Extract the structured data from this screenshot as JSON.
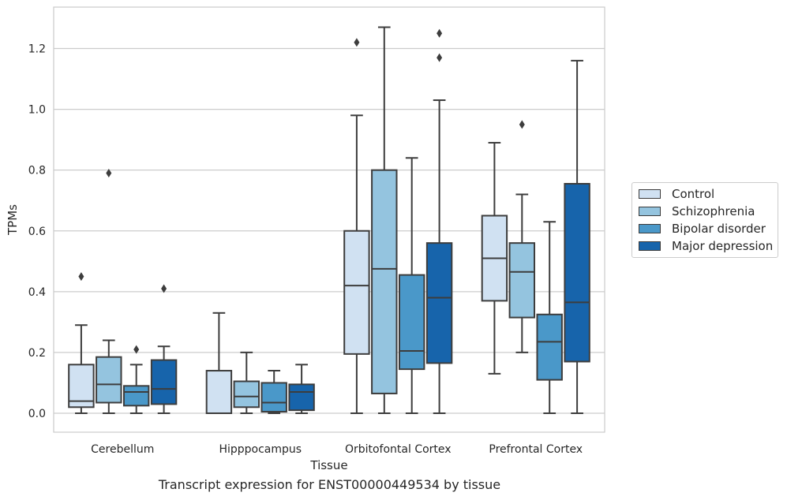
{
  "chart_data": {
    "type": "box",
    "title": "",
    "caption": "Transcript expression for ENST00000449534 by tissue",
    "xlabel": "Tissue",
    "ylabel": "TPMs",
    "ylim": [
      -0.06,
      1.34
    ],
    "yticks": [
      "0.0",
      "0.2",
      "0.4",
      "0.6",
      "0.8",
      "1.0",
      "1.2"
    ],
    "grid": true,
    "legend_position": "right",
    "categories": [
      "Cerebellum",
      "Hipppocampus",
      "Orbitofontal Cortex",
      "Prefrontal Cortex"
    ],
    "series": [
      {
        "name": "Control",
        "color": "#d0e1f2",
        "boxes": [
          {
            "whislo": 0.0,
            "q1": 0.02,
            "med": 0.04,
            "q3": 0.16,
            "whishi": 0.29,
            "fliers": [
              0.45
            ]
          },
          {
            "whislo": 0.0,
            "q1": 0.0,
            "med": 0.0,
            "q3": 0.14,
            "whishi": 0.33,
            "fliers": []
          },
          {
            "whislo": 0.0,
            "q1": 0.195,
            "med": 0.42,
            "q3": 0.6,
            "whishi": 0.98,
            "fliers": [
              1.22
            ]
          },
          {
            "whislo": 0.13,
            "q1": 0.37,
            "med": 0.51,
            "q3": 0.65,
            "whishi": 0.89,
            "fliers": []
          }
        ]
      },
      {
        "name": "Schizophrenia",
        "color": "#94c4df",
        "boxes": [
          {
            "whislo": 0.0,
            "q1": 0.035,
            "med": 0.095,
            "q3": 0.185,
            "whishi": 0.24,
            "fliers": [
              0.79
            ]
          },
          {
            "whislo": 0.0,
            "q1": 0.02,
            "med": 0.055,
            "q3": 0.105,
            "whishi": 0.2,
            "fliers": []
          },
          {
            "whislo": 0.0,
            "q1": 0.065,
            "med": 0.475,
            "q3": 0.8,
            "whishi": 1.27,
            "fliers": []
          },
          {
            "whislo": 0.2,
            "q1": 0.315,
            "med": 0.465,
            "q3": 0.56,
            "whishi": 0.72,
            "fliers": [
              0.95
            ]
          }
        ]
      },
      {
        "name": "Bipolar disorder",
        "color": "#4a98c9",
        "boxes": [
          {
            "whislo": 0.0,
            "q1": 0.025,
            "med": 0.07,
            "q3": 0.09,
            "whishi": 0.16,
            "fliers": [
              0.21
            ]
          },
          {
            "whislo": 0.0,
            "q1": 0.005,
            "med": 0.035,
            "q3": 0.1,
            "whishi": 0.14,
            "fliers": []
          },
          {
            "whislo": 0.0,
            "q1": 0.145,
            "med": 0.205,
            "q3": 0.455,
            "whishi": 0.84,
            "fliers": []
          },
          {
            "whislo": 0.0,
            "q1": 0.11,
            "med": 0.235,
            "q3": 0.325,
            "whishi": 0.63,
            "fliers": []
          }
        ]
      },
      {
        "name": "Major depression",
        "color": "#1764ab",
        "boxes": [
          {
            "whislo": 0.0,
            "q1": 0.03,
            "med": 0.08,
            "q3": 0.175,
            "whishi": 0.22,
            "fliers": [
              0.41
            ]
          },
          {
            "whislo": 0.0,
            "q1": 0.01,
            "med": 0.07,
            "q3": 0.095,
            "whishi": 0.16,
            "fliers": []
          },
          {
            "whislo": 0.0,
            "q1": 0.165,
            "med": 0.38,
            "q3": 0.56,
            "whishi": 1.03,
            "fliers": [
              1.17,
              1.25
            ]
          },
          {
            "whislo": 0.0,
            "q1": 0.17,
            "med": 0.365,
            "q3": 0.755,
            "whishi": 1.16,
            "fliers": []
          }
        ]
      }
    ]
  }
}
